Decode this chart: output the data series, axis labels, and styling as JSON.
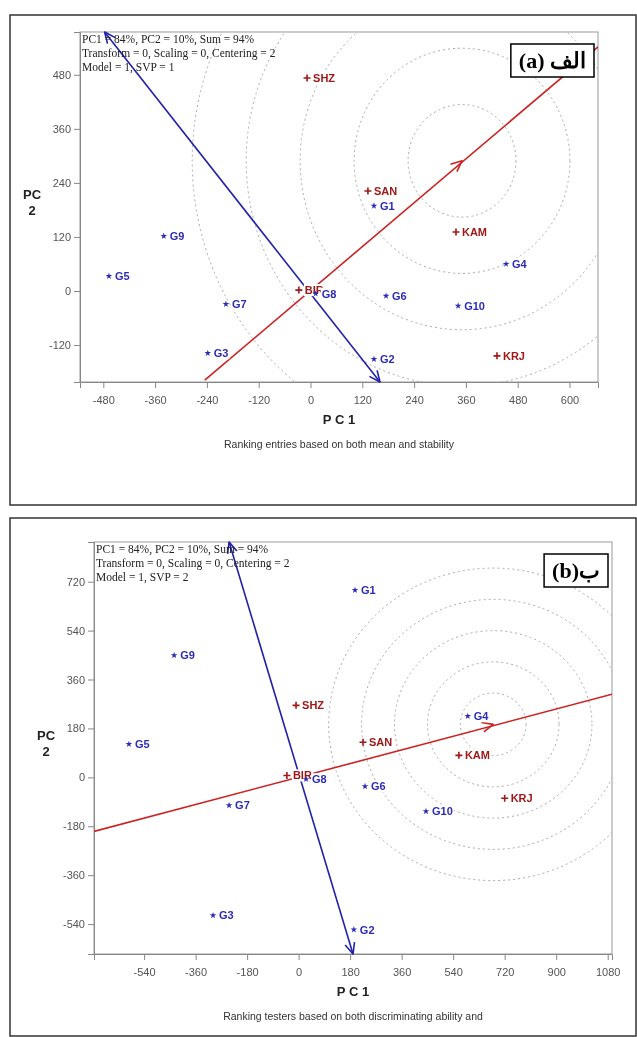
{
  "chart_data": [
    {
      "type": "scatter",
      "title": "الف (a)",
      "xlabel": "P C 1",
      "ylabel": "PC 2",
      "annotations": [
        "PC1 = 84%, PC2 = 10%, Sum = 94%",
        "Transform = 0, Scaling = 0, Centering = 2",
        "Model = 1, SVP = 1",
        "Ranking entries based on both mean and stability"
      ],
      "xlim": [
        -534,
        666
      ],
      "ylim": [
        -202,
        575
      ],
      "xticks": [
        -480,
        -360,
        -240,
        -120,
        0,
        120,
        240,
        360,
        480,
        600
      ],
      "yticks": [
        -120,
        0,
        120,
        240,
        360,
        480
      ],
      "series": [
        {
          "type": "line",
          "color": "#cc2222",
          "x": [
            -245,
            666
          ],
          "values": [
            -198,
            542
          ]
        },
        {
          "name": "SHZ",
          "color": "#a01818",
          "marker": "cross",
          "x": [
            -8
          ],
          "values": [
            473
          ]
        },
        {
          "name": "SAN",
          "color": "#a01818",
          "marker": "cross",
          "x": [
            133
          ],
          "values": [
            222
          ]
        },
        {
          "name": "KAM",
          "color": "#a01818",
          "marker": "cross",
          "x": [
            337
          ],
          "values": [
            131
          ]
        },
        {
          "name": "BIR",
          "color": "#a01818",
          "marker": "cross",
          "x": [
            -27
          ],
          "values": [
            2
          ]
        },
        {
          "name": "KRJ",
          "color": "#a01818",
          "marker": "cross",
          "x": [
            432
          ],
          "values": [
            -144
          ]
        },
        {
          "name": "G1",
          "color": "#2b2bb8",
          "marker": "star",
          "x": [
            147
          ],
          "values": [
            189
          ]
        },
        {
          "name": "G2",
          "color": "#2b2bb8",
          "marker": "star",
          "x": [
            147
          ],
          "values": [
            -151
          ]
        },
        {
          "name": "G3",
          "color": "#2b2bb8",
          "marker": "star",
          "x": [
            -238
          ],
          "values": [
            -138
          ]
        },
        {
          "name": "G4",
          "color": "#2b2bb8",
          "marker": "star",
          "x": [
            453
          ],
          "values": [
            60
          ]
        },
        {
          "name": "G5",
          "color": "#2b2bb8",
          "marker": "star",
          "x": [
            -467
          ],
          "values": [
            33
          ]
        },
        {
          "name": "G6",
          "color": "#2b2bb8",
          "marker": "star",
          "x": [
            175
          ],
          "values": [
            -11
          ]
        },
        {
          "name": "G7",
          "color": "#2b2bb8",
          "marker": "star",
          "x": [
            -196
          ],
          "values": [
            -29
          ]
        },
        {
          "name": "G8",
          "color": "#2b2bb8",
          "marker": "star",
          "x": [
            12
          ],
          "values": [
            -6
          ]
        },
        {
          "name": "G9",
          "color": "#2b2bb8",
          "marker": "star",
          "x": [
            -340
          ],
          "values": [
            122
          ]
        },
        {
          "name": "G10",
          "color": "#2b2bb8",
          "marker": "star",
          "x": [
            342
          ],
          "values": [
            -33
          ]
        }
      ]
    },
    {
      "type": "scatter",
      "title": "ب(b)",
      "xlabel": "P C 1",
      "ylabel": "PC 2",
      "annotations": [
        "PC1 = 84%, PC2 = 10%, Sum = 94%",
        "Transform = 0, Scaling = 0, Centering = 2",
        "Model = 1, SVP = 2",
        "Ranking testers based on both discriminating ability and"
      ],
      "xlim": [
        -715,
        1095
      ],
      "ylim": [
        -650,
        866
      ],
      "xticks": [
        -540,
        -360,
        -180,
        0,
        180,
        360,
        540,
        720,
        900,
        1080
      ],
      "yticks": [
        -540,
        -360,
        -180,
        0,
        180,
        360,
        540,
        720
      ],
      "series": [
        {
          "type": "line",
          "color": "#cc2222",
          "x": [
            -715,
            1095
          ],
          "values": [
            -199,
            306
          ]
        },
        {
          "name": "SHZ",
          "color": "#a01818",
          "marker": "cross",
          "x": [
            -9
          ],
          "values": [
            265
          ]
        },
        {
          "name": "SAN",
          "color": "#a01818",
          "marker": "cross",
          "x": [
            225
          ],
          "values": [
            129
          ]
        },
        {
          "name": "KAM",
          "color": "#a01818",
          "marker": "cross",
          "x": [
            560
          ],
          "values": [
            81
          ]
        },
        {
          "name": "BIR",
          "color": "#a01818",
          "marker": "cross",
          "x": [
            -41
          ],
          "values": [
            7
          ]
        },
        {
          "name": "KRJ",
          "color": "#a01818",
          "marker": "cross",
          "x": [
            720
          ],
          "values": [
            -77
          ]
        },
        {
          "name": "G1",
          "color": "#2b2bb8",
          "marker": "star",
          "x": [
            197
          ],
          "values": [
            689
          ]
        },
        {
          "name": "G2",
          "color": "#2b2bb8",
          "marker": "star",
          "x": [
            193
          ],
          "values": [
            -560
          ]
        },
        {
          "name": "G3",
          "color": "#2b2bb8",
          "marker": "star",
          "x": [
            -299
          ],
          "values": [
            -508
          ]
        },
        {
          "name": "G4",
          "color": "#2b2bb8",
          "marker": "star",
          "x": [
            591
          ],
          "values": [
            225
          ]
        },
        {
          "name": "G5",
          "color": "#2b2bb8",
          "marker": "star",
          "x": [
            -593
          ],
          "values": [
            122
          ]
        },
        {
          "name": "G6",
          "color": "#2b2bb8",
          "marker": "star",
          "x": [
            232
          ],
          "values": [
            -33
          ]
        },
        {
          "name": "G7",
          "color": "#2b2bb8",
          "marker": "star",
          "x": [
            -243
          ],
          "values": [
            -103
          ]
        },
        {
          "name": "G8",
          "color": "#2b2bb8",
          "marker": "star",
          "x": [
            26
          ],
          "values": [
            -7
          ]
        },
        {
          "name": "G9",
          "color": "#2b2bb8",
          "marker": "star",
          "x": [
            -435
          ],
          "values": [
            449
          ]
        },
        {
          "name": "G10",
          "color": "#2b2bb8",
          "marker": "star",
          "x": [
            445
          ],
          "values": [
            -125
          ]
        }
      ]
    }
  ]
}
